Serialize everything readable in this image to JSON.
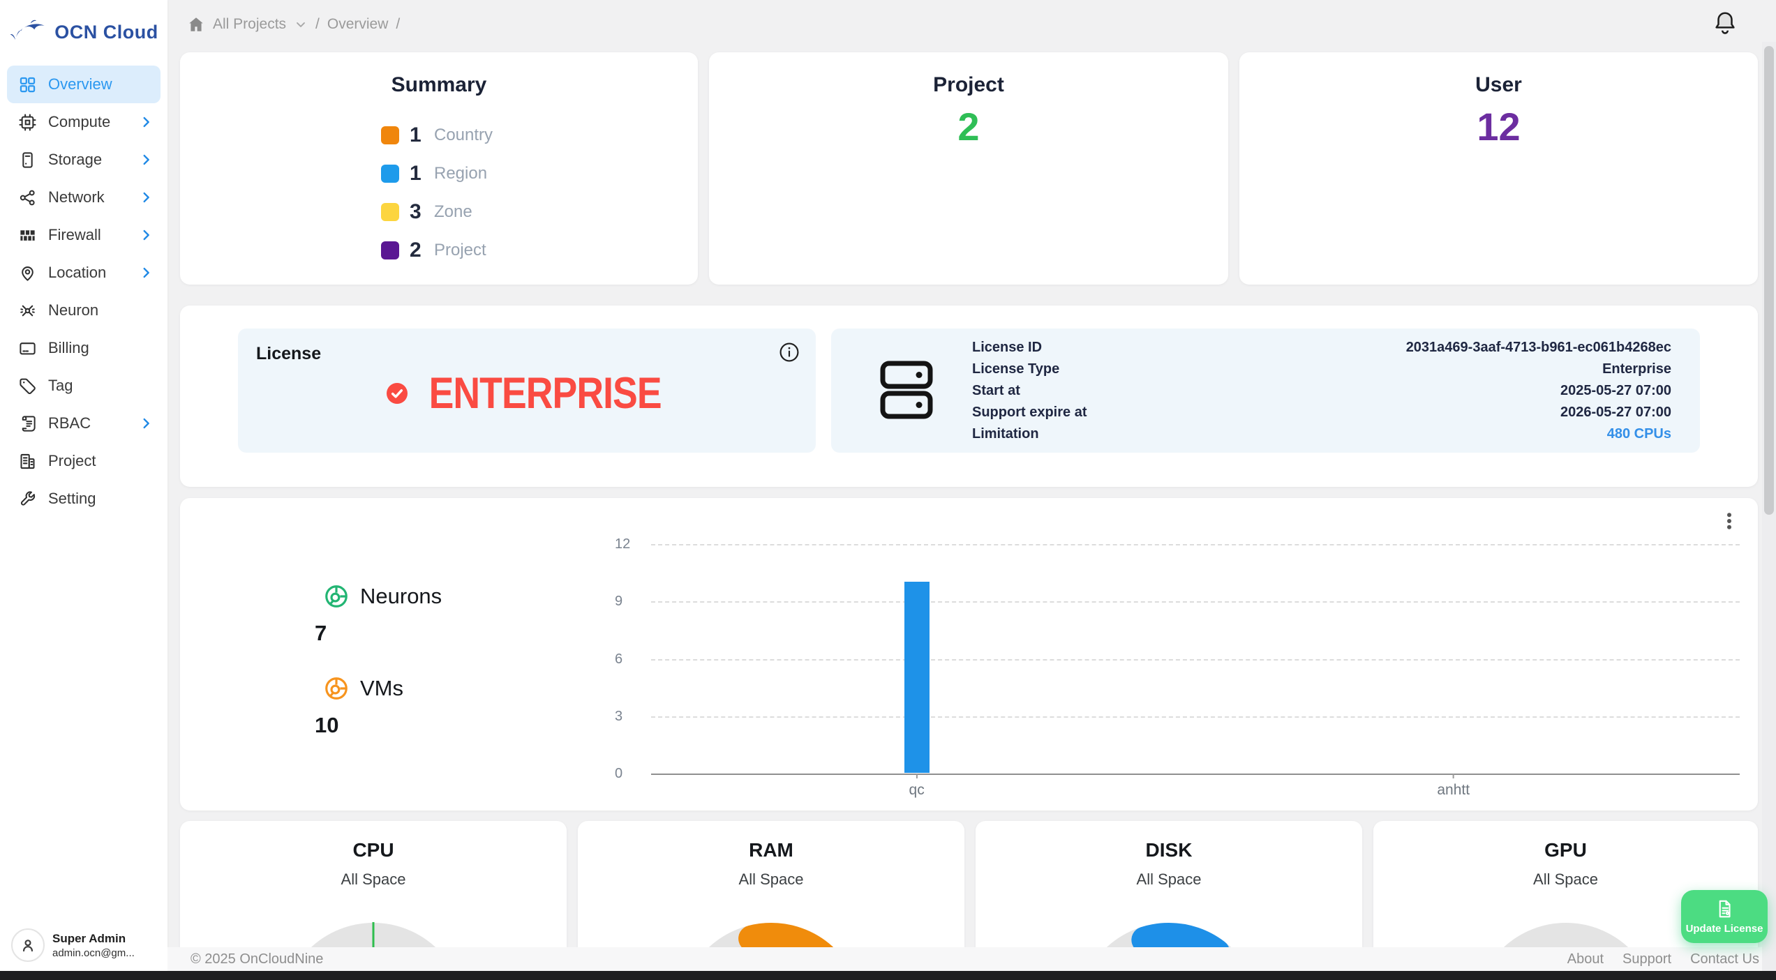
{
  "brand": {
    "name": "OCN Cloud"
  },
  "breadcrumb": {
    "items": [
      "All Projects",
      "Overview"
    ],
    "separator": "/"
  },
  "sidebar": {
    "items": [
      {
        "label": "Overview",
        "icon": "dashboard-icon",
        "active": true,
        "chevron": false
      },
      {
        "label": "Compute",
        "icon": "cpu-icon",
        "active": false,
        "chevron": true
      },
      {
        "label": "Storage",
        "icon": "server-icon",
        "active": false,
        "chevron": true
      },
      {
        "label": "Network",
        "icon": "share-network-icon",
        "active": false,
        "chevron": true
      },
      {
        "label": "Firewall",
        "icon": "firewall-bricks-icon",
        "active": false,
        "chevron": true
      },
      {
        "label": "Location",
        "icon": "map-pin-icon",
        "active": false,
        "chevron": true
      },
      {
        "label": "Neuron",
        "icon": "neuron-icon",
        "active": false,
        "chevron": false
      },
      {
        "label": "Billing",
        "icon": "credit-card-icon",
        "active": false,
        "chevron": false
      },
      {
        "label": "Tag",
        "icon": "tag-icon",
        "active": false,
        "chevron": false
      },
      {
        "label": "RBAC",
        "icon": "scroll-icon",
        "active": false,
        "chevron": true
      },
      {
        "label": "Project",
        "icon": "building-icon",
        "active": false,
        "chevron": false
      },
      {
        "label": "Setting",
        "icon": "wrench-icon",
        "active": false,
        "chevron": false
      }
    ]
  },
  "user_panel": {
    "name": "Super Admin",
    "email": "admin.ocn@gm..."
  },
  "summary": {
    "title": "Summary",
    "legend": [
      {
        "count": "1",
        "label": "Country",
        "color": "#F0860C"
      },
      {
        "count": "1",
        "label": "Region",
        "color": "#1E9BEB"
      },
      {
        "count": "3",
        "label": "Zone",
        "color": "#FCD53F"
      },
      {
        "count": "2",
        "label": "Project",
        "color": "#5A1793"
      }
    ]
  },
  "stats": {
    "project": {
      "title": "Project",
      "value": "2",
      "color": "#2FBE56"
    },
    "user": {
      "title": "User",
      "value": "12",
      "color": "#6C2DA0"
    }
  },
  "license": {
    "title": "License",
    "tier": "ENTERPRISE",
    "tier_color": "#FA4B42",
    "details": [
      {
        "label": "License ID",
        "value": "2031a469-3aaf-4713-b961-ec061b4268ec",
        "link": false
      },
      {
        "label": "License Type",
        "value": "Enterprise",
        "link": false
      },
      {
        "label": "Start at",
        "value": "2025-05-27 07:00",
        "link": false
      },
      {
        "label": "Support expire at",
        "value": "2026-05-27 07:00",
        "link": false
      },
      {
        "label": "Limitation",
        "value": "480 CPUs",
        "link": true,
        "link_color": "#338FE8"
      }
    ]
  },
  "metrics": {
    "neurons": {
      "label": "Neurons",
      "value": "7",
      "icon_color": "#22B573"
    },
    "vms": {
      "label": "VMs",
      "value": "10",
      "icon_color": "#F7941E"
    }
  },
  "chart_data": {
    "type": "bar",
    "categories": [
      "qc",
      "anhtt"
    ],
    "values": [
      10,
      0
    ],
    "yticks": [
      0,
      3,
      6,
      9,
      12
    ],
    "ylim": [
      0,
      12
    ],
    "bar_color": "#1E92E8",
    "grid": true,
    "legend_position": "none",
    "category_positions": [
      0.244,
      0.737
    ]
  },
  "usage_cards": [
    {
      "title": "CPU",
      "subtitle": "All Space",
      "indicator": {
        "type": "tick",
        "color": "#2EBD4E",
        "start": 50,
        "length": 1
      }
    },
    {
      "title": "RAM",
      "subtitle": "All Space",
      "indicator": {
        "type": "arc",
        "color": "#F08C0C",
        "start": 42,
        "length": 33
      }
    },
    {
      "title": "DISK",
      "subtitle": "All Space",
      "indicator": {
        "type": "arc",
        "color": "#1E90E8",
        "start": 40,
        "length": 31
      }
    },
    {
      "title": "GPU",
      "subtitle": "All Space",
      "indicator": {
        "type": "none",
        "color": "",
        "start": 0,
        "length": 0
      }
    }
  ],
  "footer": {
    "copyright": "© 2025 OnCloudNine",
    "links": [
      "About",
      "Support",
      "Contact Us"
    ]
  },
  "floating_button": {
    "label": "Update License",
    "color": "#4CDC82"
  }
}
